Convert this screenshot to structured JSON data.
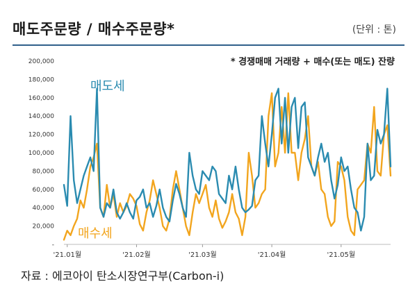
{
  "header": {
    "title": "매도주문량  /  매수주문량*",
    "unit": "(단위 : 톤)",
    "note": "* 경쟁매매 거래량 + 매수(또는 매도) 잔량"
  },
  "source": "자료 : 에코아이 탄소시장연구부(Carbon-i)",
  "colors": {
    "sell": "#2a8bb0",
    "buy": "#f2a51e",
    "rule": "#2f5f8a"
  },
  "chart_data": {
    "type": "line",
    "title": "매도주문량 / 매수주문량",
    "unit": "톤",
    "ylim": [
      0,
      200000
    ],
    "yticks": [
      {
        "value": 0,
        "label": "-"
      },
      {
        "value": 20000,
        "label": "20,000"
      },
      {
        "value": 40000,
        "label": "40,000"
      },
      {
        "value": 60000,
        "label": "60,000"
      },
      {
        "value": 80000,
        "label": "80,000"
      },
      {
        "value": 100000,
        "label": "100,000"
      },
      {
        "value": 120000,
        "label": "120,000"
      },
      {
        "value": 140000,
        "label": "140,000"
      },
      {
        "value": 160000,
        "label": "160,000"
      },
      {
        "value": 180000,
        "label": "180,000"
      },
      {
        "value": 200000,
        "label": "200,000"
      }
    ],
    "n_points": 100,
    "xticks": [
      {
        "index": 1,
        "label": "'21.01월"
      },
      {
        "index": 22,
        "label": "'21.02월"
      },
      {
        "index": 42,
        "label": "'21.03월"
      },
      {
        "index": 63,
        "label": "'21.04월"
      },
      {
        "index": 84,
        "label": "'21.05월"
      }
    ],
    "series": [
      {
        "name": "매도세",
        "key": "sell",
        "values": [
          65000,
          42000,
          140000,
          70000,
          45000,
          60000,
          75000,
          85000,
          95000,
          80000,
          170000,
          40000,
          30000,
          45000,
          40000,
          60000,
          35000,
          28000,
          35000,
          45000,
          35000,
          28000,
          48000,
          52000,
          60000,
          40000,
          45000,
          30000,
          42000,
          60000,
          40000,
          30000,
          25000,
          48000,
          66000,
          55000,
          40000,
          30000,
          100000,
          75000,
          60000,
          55000,
          80000,
          75000,
          70000,
          85000,
          80000,
          55000,
          50000,
          45000,
          75000,
          60000,
          85000,
          60000,
          40000,
          35000,
          38000,
          42000,
          70000,
          75000,
          140000,
          110000,
          85000,
          120000,
          160000,
          170000,
          110000,
          160000,
          100000,
          150000,
          160000,
          105000,
          150000,
          155000,
          95000,
          85000,
          75000,
          95000,
          110000,
          90000,
          100000,
          70000,
          50000,
          65000,
          95000,
          80000,
          85000,
          60000,
          40000,
          35000,
          15000,
          30000,
          110000,
          70000,
          75000,
          125000,
          110000,
          120000,
          170000,
          85000
        ]
      },
      {
        "name": "매수세",
        "key": "buy",
        "values": [
          5000,
          15000,
          10000,
          20000,
          28000,
          48000,
          40000,
          60000,
          85000,
          95000,
          110000,
          40000,
          30000,
          65000,
          40000,
          55000,
          30000,
          45000,
          35000,
          42000,
          55000,
          50000,
          42000,
          22000,
          15000,
          35000,
          48000,
          70000,
          55000,
          40000,
          20000,
          15000,
          28000,
          60000,
          80000,
          60000,
          40000,
          20000,
          10000,
          35000,
          55000,
          45000,
          55000,
          65000,
          40000,
          30000,
          48000,
          28000,
          18000,
          25000,
          35000,
          55000,
          35000,
          28000,
          10000,
          30000,
          100000,
          75000,
          40000,
          45000,
          55000,
          60000,
          140000,
          165000,
          85000,
          100000,
          150000,
          100000,
          165000,
          100000,
          100000,
          70000,
          100000,
          115000,
          140000,
          85000,
          75000,
          90000,
          60000,
          55000,
          30000,
          20000,
          25000,
          90000,
          85000,
          70000,
          30000,
          15000,
          10000,
          60000,
          65000,
          70000,
          110000,
          100000,
          150000,
          80000,
          75000,
          120000,
          130000,
          75000
        ]
      }
    ],
    "series_labels": [
      {
        "text": "매도세",
        "key": "sell"
      },
      {
        "text": "매수세",
        "key": "buy"
      }
    ]
  }
}
